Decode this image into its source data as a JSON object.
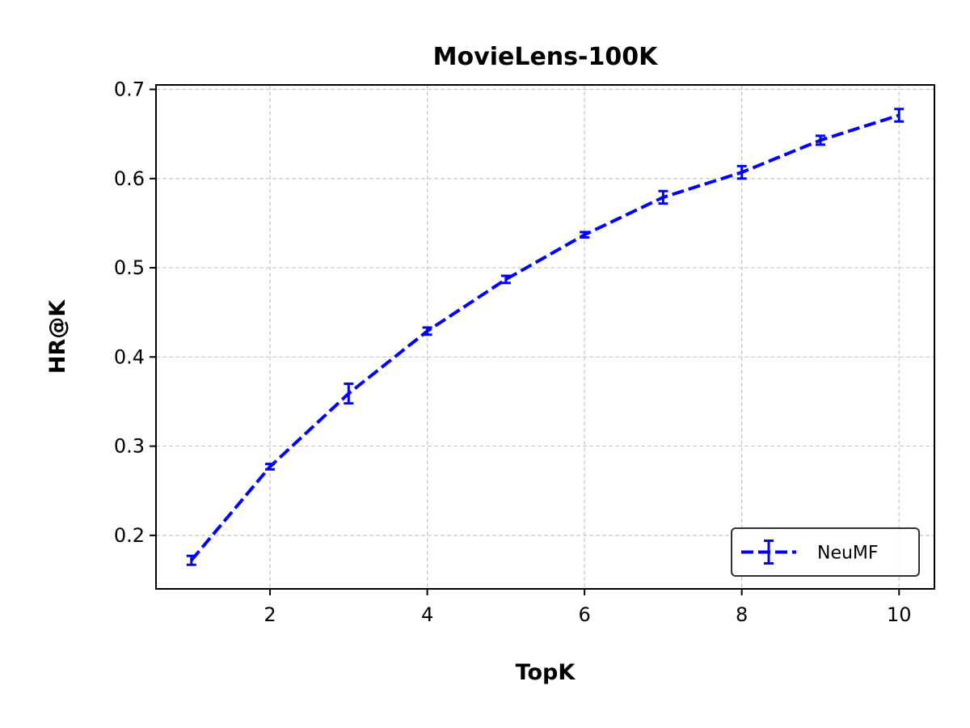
{
  "chart_data": {
    "type": "line",
    "title": "MovieLens-100K",
    "xlabel": "TopK",
    "ylabel": "HR@K",
    "xlim": [
      0.55,
      10.45
    ],
    "ylim": [
      0.14,
      0.705
    ],
    "x_ticks": [
      2,
      4,
      6,
      8,
      10
    ],
    "x_tick_labels": [
      "2",
      "4",
      "6",
      "8",
      "10"
    ],
    "y_ticks": [
      0.2,
      0.3,
      0.4,
      0.5,
      0.6,
      0.7
    ],
    "y_tick_labels": [
      "0.2",
      "0.3",
      "0.4",
      "0.5",
      "0.6",
      "0.7"
    ],
    "grid": true,
    "legend_position": "lower-right",
    "series": [
      {
        "name": "NeuMF",
        "color": "#0000ff",
        "line_style": "dashed",
        "x": [
          1,
          2,
          3,
          4,
          5,
          6,
          7,
          8,
          9,
          10
        ],
        "y": [
          0.172,
          0.277,
          0.359,
          0.429,
          0.487,
          0.537,
          0.579,
          0.607,
          0.643,
          0.671
        ],
        "error": [
          0.005,
          0.003,
          0.011,
          0.004,
          0.004,
          0.003,
          0.007,
          0.007,
          0.005,
          0.007
        ]
      }
    ]
  }
}
